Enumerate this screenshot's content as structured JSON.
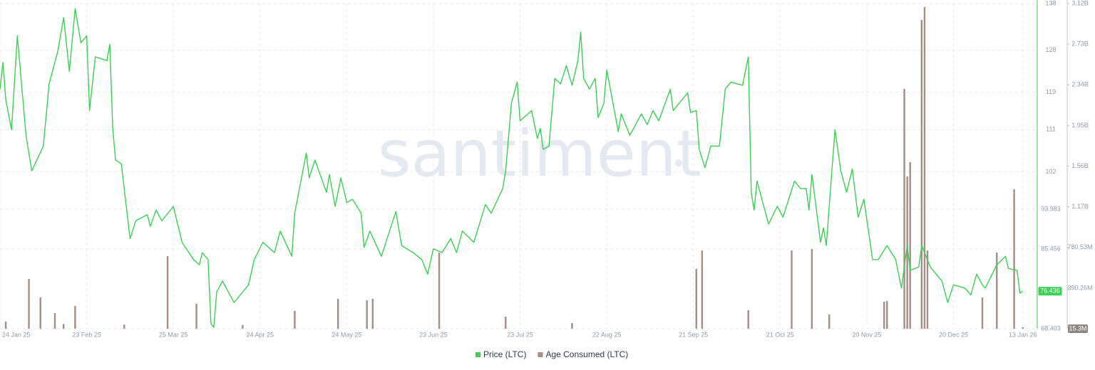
{
  "chart_data": {
    "type": "combo",
    "watermark": "santiment",
    "grid": true,
    "xlim": [
      "2025-01-24",
      "2026-01-18"
    ],
    "xticks": [
      {
        "value": "2025-01-24",
        "label": "24 Jan 25"
      },
      {
        "value": "2025-02-23",
        "label": "23 Feb 25"
      },
      {
        "value": "2025-03-25",
        "label": "25 Mar 25"
      },
      {
        "value": "2025-04-24",
        "label": "24 Apr 25"
      },
      {
        "value": "2025-05-24",
        "label": "24 May 25"
      },
      {
        "value": "2025-06-23",
        "label": "23 Jun 25"
      },
      {
        "value": "2025-07-23",
        "label": "23 Jul 25"
      },
      {
        "value": "2025-08-22",
        "label": "22 Aug 25"
      },
      {
        "value": "2025-09-21",
        "label": "21 Sep 25"
      },
      {
        "value": "2025-10-21",
        "label": "21 Oct 25"
      },
      {
        "value": "2025-11-20",
        "label": "20 Nov 25"
      },
      {
        "value": "2025-12-20",
        "label": "20 Dec 25"
      },
      {
        "value": "2026-01-13",
        "label": "13 Jan 26"
      }
    ],
    "ylim": [
      68.403,
      138
    ],
    "yticks": [
      68.403,
      85.456,
      93.983,
      102,
      111,
      119,
      128,
      138
    ],
    "y2lim": [
      0,
      3122120000
    ],
    "y2ticks": [
      {
        "value": 390265000,
        "label": "390.26M"
      },
      {
        "value": 780530000,
        "label": "780.53M"
      },
      {
        "value": 1170795000,
        "label": "1.17B"
      },
      {
        "value": 1561060000,
        "label": "1.56B"
      },
      {
        "value": 1951325000,
        "label": "1.95B"
      },
      {
        "value": 2341590000,
        "label": "2.34B"
      },
      {
        "value": 2731855000,
        "label": "2.73B"
      },
      {
        "value": 3122120000,
        "label": "3.12B"
      }
    ],
    "series": [
      {
        "name": "Price (LTC)",
        "type": "line",
        "color": "#3ccf55",
        "axis": "y",
        "last_label": "76.436",
        "x": [
          "2025-01-24",
          "2025-01-25",
          "2025-01-26",
          "2025-01-28",
          "2025-01-29",
          "2025-01-30",
          "2025-02-02",
          "2025-02-04",
          "2025-02-08",
          "2025-02-10",
          "2025-02-13",
          "2025-02-15",
          "2025-02-17",
          "2025-02-19",
          "2025-02-21",
          "2025-02-23",
          "2025-02-24",
          "2025-02-26",
          "2025-03-02",
          "2025-03-03",
          "2025-03-04",
          "2025-03-05",
          "2025-03-07",
          "2025-03-10",
          "2025-03-12",
          "2025-03-16",
          "2025-03-17",
          "2025-03-19",
          "2025-03-21",
          "2025-03-25",
          "2025-03-28",
          "2025-04-01",
          "2025-04-03",
          "2025-04-04",
          "2025-04-06",
          "2025-04-07",
          "2025-04-08",
          "2025-04-09",
          "2025-04-11",
          "2025-04-15",
          "2025-04-20",
          "2025-04-22",
          "2025-04-25",
          "2025-04-29",
          "2025-05-01",
          "2025-05-05",
          "2025-05-06",
          "2025-05-10",
          "2025-05-11",
          "2025-05-13",
          "2025-05-17",
          "2025-05-18",
          "2025-05-20",
          "2025-05-22",
          "2025-05-24",
          "2025-05-26",
          "2025-05-29",
          "2025-05-30",
          "2025-06-01",
          "2025-06-05",
          "2025-06-10",
          "2025-06-12",
          "2025-06-16",
          "2025-06-19",
          "2025-06-21",
          "2025-06-23",
          "2025-06-26",
          "2025-06-29",
          "2025-07-01",
          "2025-07-03",
          "2025-07-07",
          "2025-07-11",
          "2025-07-13",
          "2025-07-17",
          "2025-07-18",
          "2025-07-20",
          "2025-07-22",
          "2025-07-23",
          "2025-07-27",
          "2025-07-29",
          "2025-07-30",
          "2025-07-31",
          "2025-08-02",
          "2025-08-04",
          "2025-08-06",
          "2025-08-08",
          "2025-08-10",
          "2025-08-12",
          "2025-08-13",
          "2025-08-14",
          "2025-08-16",
          "2025-08-18",
          "2025-08-19",
          "2025-08-21",
          "2025-08-22",
          "2025-08-26",
          "2025-08-27",
          "2025-08-30",
          "2025-09-03",
          "2025-09-05",
          "2025-09-07",
          "2025-09-09",
          "2025-09-13",
          "2025-09-14",
          "2025-09-19",
          "2025-09-20",
          "2025-09-22",
          "2025-09-23",
          "2025-09-25",
          "2025-09-27",
          "2025-09-30",
          "2025-10-02",
          "2025-10-04",
          "2025-10-08",
          "2025-10-10",
          "2025-10-11",
          "2025-10-12",
          "2025-10-13",
          "2025-10-17",
          "2025-10-20",
          "2025-10-22",
          "2025-10-26",
          "2025-10-28",
          "2025-10-30",
          "2025-10-31",
          "2025-11-01",
          "2025-11-04",
          "2025-11-05",
          "2025-11-06",
          "2025-11-08",
          "2025-11-09",
          "2025-11-11",
          "2025-11-13",
          "2025-11-15",
          "2025-11-17",
          "2025-11-19",
          "2025-11-22",
          "2025-11-24",
          "2025-11-27",
          "2025-11-30",
          "2025-12-02",
          "2025-12-04",
          "2025-12-05",
          "2025-12-08",
          "2025-12-09",
          "2025-12-12",
          "2025-12-16",
          "2025-12-18",
          "2025-12-20",
          "2025-12-24",
          "2025-12-26",
          "2025-12-28",
          "2025-12-30",
          "2025-12-31",
          "2026-01-04",
          "2026-01-07",
          "2026-01-08",
          "2026-01-11",
          "2026-01-12",
          "2026-01-13"
        ],
        "values": [
          119.7,
          125.4,
          117.4,
          111,
          121.2,
          131.1,
          109.8,
          102.2,
          107.5,
          120.8,
          127.8,
          135,
          123.5,
          136.9,
          129.6,
          131.1,
          115.1,
          126.6,
          125.8,
          129.3,
          111.3,
          104.5,
          103.7,
          87.7,
          91.5,
          92.8,
          90.3,
          93.8,
          91.5,
          94.6,
          86.9,
          83.2,
          82.1,
          84.7,
          83.2,
          69.5,
          68.7,
          76.3,
          78.6,
          74.0,
          77.8,
          83.2,
          86.9,
          84.7,
          89.3,
          83.9,
          93.1,
          106.0,
          100.7,
          104.5,
          97.6,
          101.4,
          94.6,
          100.7,
          95.4,
          96.1,
          93.1,
          85.8,
          89.3,
          83.9,
          93.5,
          86.2,
          84.7,
          83.2,
          80.1,
          85.5,
          84.7,
          87.7,
          84.7,
          89.3,
          86.9,
          95.0,
          93.1,
          98.4,
          102.2,
          116.7,
          121.2,
          112.9,
          115.1,
          109.1,
          111.3,
          106.8,
          107.5,
          122.0,
          120.8,
          124.7,
          120.5,
          125.8,
          131.9,
          122.0,
          119.7,
          122.0,
          113.6,
          116.7,
          123.8,
          110.6,
          114.4,
          109.8,
          114.4,
          112.1,
          115.1,
          112.9,
          119.7,
          115.1,
          118.9,
          114.7,
          115.1,
          106.8,
          102.9,
          107.5,
          107.5,
          119.7,
          121.2,
          120.5,
          126.6,
          97.6,
          93.8,
          100.0,
          90.8,
          94.6,
          92.3,
          100.0,
          98.4,
          98.4,
          93.8,
          101.4,
          86.9,
          90.0,
          86.2,
          102.9,
          111.0,
          102.2,
          97.6,
          102.6,
          92.3,
          96.1,
          83.2,
          83.2,
          86.2,
          83.2,
          77.1,
          86.2,
          80.9,
          81.6,
          86.2,
          81.6,
          78.6,
          74.0,
          77.8,
          77.1,
          75.6,
          80.1,
          77.8,
          77.1,
          82.1,
          83.9,
          81.3,
          80.9,
          76.0,
          76.436
        ]
      },
      {
        "name": "Age Consumed (LTC)",
        "type": "bar",
        "color": "#a78c83",
        "axis": "y2",
        "last_label": "15.3M",
        "x": [
          "2025-01-26",
          "2025-02-03",
          "2025-02-07",
          "2025-02-12",
          "2025-02-15",
          "2025-02-19",
          "2025-03-08",
          "2025-03-23",
          "2025-04-02",
          "2025-04-18",
          "2025-05-06",
          "2025-05-21",
          "2025-05-31",
          "2025-06-02",
          "2025-06-25",
          "2025-07-18",
          "2025-08-10",
          "2025-09-22",
          "2025-09-24",
          "2025-10-10",
          "2025-10-25",
          "2025-11-01",
          "2025-11-07",
          "2025-11-26",
          "2025-11-27",
          "2025-12-03",
          "2025-12-04",
          "2025-12-05",
          "2025-12-09",
          "2025-12-10",
          "2025-12-11",
          "2025-12-30",
          "2026-01-04",
          "2026-01-10",
          "2026-01-13"
        ],
        "values": [
          68000000,
          478000000,
          300000000,
          150000000,
          45000000,
          219000000,
          40000000,
          697000000,
          239000000,
          35000000,
          171000000,
          287000000,
          273000000,
          287000000,
          731000000,
          116000000,
          55000000,
          574000000,
          751000000,
          178000000,
          751000000,
          765000000,
          137000000,
          260000000,
          266000000,
          2302000000,
          1462000000,
          1599000000,
          2965000000,
          3088000000,
          751000000,
          300000000,
          731000000,
          1339000000,
          15300000
        ]
      }
    ]
  }
}
